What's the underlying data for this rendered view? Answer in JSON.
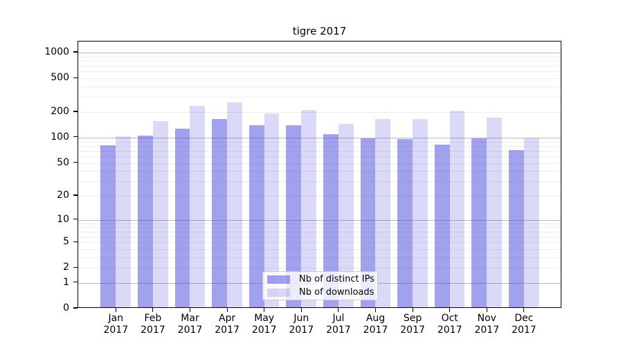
{
  "chart_data": {
    "type": "bar",
    "title": "tigre 2017",
    "yscale": "log1p",
    "ylim": [
      0,
      1320
    ],
    "grid": "on",
    "legend_position": "lower center",
    "categories": [
      "Jan 2017",
      "Feb 2017",
      "Mar 2017",
      "Apr 2017",
      "May 2017",
      "Jun 2017",
      "Jul 2017",
      "Aug 2017",
      "Sep 2017",
      "Oct 2017",
      "Nov 2017",
      "Dec 2017"
    ],
    "y_ticks": [
      0,
      1,
      2,
      5,
      10,
      20,
      50,
      100,
      200,
      500,
      1000
    ],
    "series": [
      {
        "name": "Nb of distinct IPs",
        "color": "rgba(68,68,221,0.5)",
        "values": [
          78,
          101,
          123,
          160,
          135,
          135,
          105,
          95,
          93,
          80,
          95,
          69
        ]
      },
      {
        "name": "Nb of downloads",
        "color": "rgba(68,68,221,0.2)",
        "values": [
          100,
          150,
          227,
          249,
          187,
          203,
          139,
          160,
          160,
          200,
          165,
          94
        ]
      }
    ],
    "grid_major_values": [
      1,
      10,
      100,
      1000
    ],
    "grid_major_color": "#b6b6b6",
    "grid_minor_color": "#ececec"
  }
}
